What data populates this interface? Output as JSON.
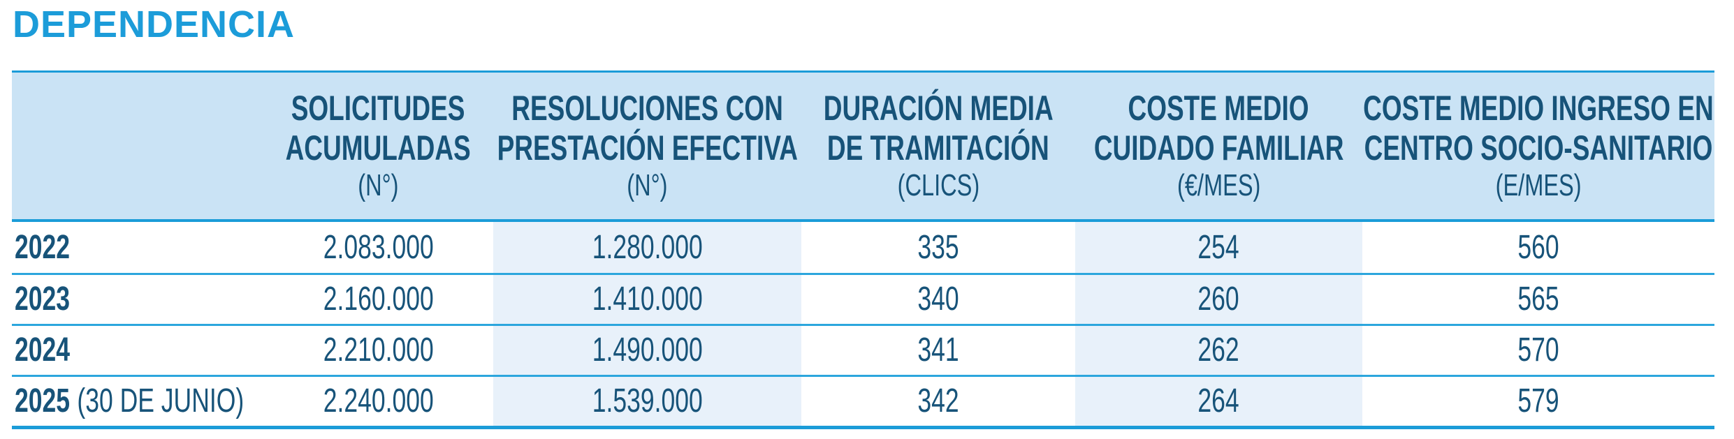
{
  "title": "DEPENDENCIA",
  "colors": {
    "accent": "#1b9cd8",
    "title_color": "#1c9cd9",
    "header_bg": "#cae3f5",
    "tint": "#e8f1fa",
    "text_dark": "#175379",
    "separator": "#2ca6dd"
  },
  "table": {
    "columns": [
      {
        "title": [
          "SOLICITUDES",
          "ACUMULADAS"
        ],
        "unit": "(N°)"
      },
      {
        "title": [
          "RESOLUCIONES CON",
          "PRESTACIÓN EFECTIVA"
        ],
        "unit": "(N°)"
      },
      {
        "title": [
          "DURACIÓN MEDIA",
          "DE TRAMITACIÓN"
        ],
        "unit": "(CLICS)"
      },
      {
        "title": [
          "COSTE MEDIO",
          "CUIDADO FAMILIAR"
        ],
        "unit": "(€/MES)"
      },
      {
        "title": [
          "COSTE MEDIO INGRESO EN",
          "CENTRO SOCIO-SANITARIO"
        ],
        "unit": "(E/MES)"
      }
    ],
    "rows": [
      {
        "year": "2022",
        "note": "",
        "values": [
          "2.083.000",
          "1.280.000",
          "335",
          "254",
          "560"
        ]
      },
      {
        "year": "2023",
        "note": "",
        "values": [
          "2.160.000",
          "1.410.000",
          "340",
          "260",
          "565"
        ]
      },
      {
        "year": "2024",
        "note": "",
        "values": [
          "2.210.000",
          "1.490.000",
          "341",
          "262",
          "570"
        ]
      },
      {
        "year": "2025",
        "note": "(30 DE JUNIO)",
        "values": [
          "2.240.000",
          "1.539.000",
          "342",
          "264",
          "579"
        ]
      }
    ]
  },
  "chart_data": {
    "type": "table",
    "title": "DEPENDENCIA",
    "columns": [
      "SOLICITUDES ACUMULADAS (N°)",
      "RESOLUCIONES CON PRESTACIÓN EFECTIVA (N°)",
      "DURACIÓN MEDIA DE TRAMITACIÓN (CLICS)",
      "COSTE MEDIO CUIDADO FAMILIAR (€/MES)",
      "COSTE MEDIO INGRESO EN CENTRO SOCIO-SANITARIO (E/MES)"
    ],
    "rows": [
      {
        "year": "2022",
        "solicitudes_acumuladas": 2083000,
        "resoluciones_con_prestacion_efectiva": 1280000,
        "duracion_media_de_tramitacion": 335,
        "coste_medio_cuidado_familiar": 254,
        "coste_medio_ingreso_centro_socio_sanitario": 560
      },
      {
        "year": "2023",
        "solicitudes_acumuladas": 2160000,
        "resoluciones_con_prestacion_efectiva": 1410000,
        "duracion_media_de_tramitacion": 340,
        "coste_medio_cuidado_familiar": 260,
        "coste_medio_ingreso_centro_socio_sanitario": 565
      },
      {
        "year": "2024",
        "solicitudes_acumuladas": 2210000,
        "resoluciones_con_prestacion_efectiva": 1490000,
        "duracion_media_de_tramitacion": 341,
        "coste_medio_cuidado_familiar": 262,
        "coste_medio_ingreso_centro_socio_sanitario": 570
      },
      {
        "year": "2025 (30 DE JUNIO)",
        "solicitudes_acumuladas": 2240000,
        "resoluciones_con_prestacion_efectiva": 1539000,
        "duracion_media_de_tramitacion": 342,
        "coste_medio_cuidado_familiar": 264,
        "coste_medio_ingreso_centro_socio_sanitario": 579
      }
    ],
    "legend_position": "none",
    "grid": "horizontal-separators"
  }
}
